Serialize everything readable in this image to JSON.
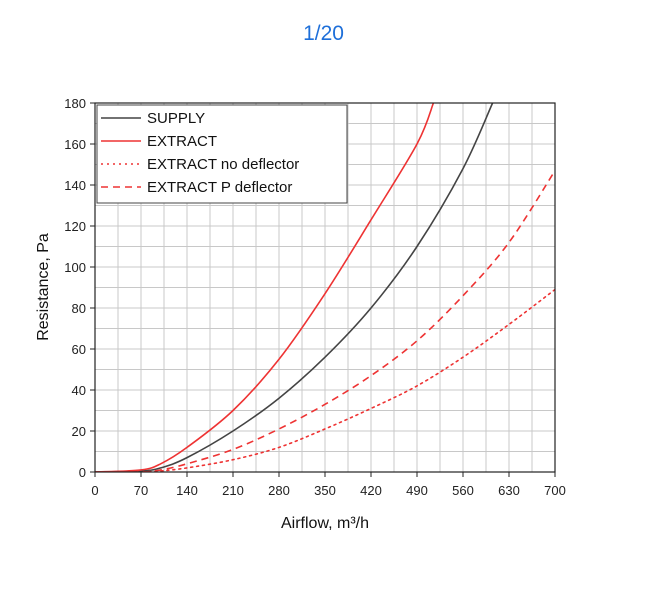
{
  "page_counter": "1/20",
  "chart_data": {
    "type": "line",
    "xlabel": "Airflow, m³/h",
    "ylabel": "Resistance, Pa",
    "xlim": [
      0,
      700
    ],
    "ylim": [
      0,
      180
    ],
    "x_ticks": [
      0,
      70,
      140,
      210,
      280,
      350,
      420,
      490,
      560,
      630,
      700
    ],
    "y_ticks": [
      0,
      20,
      40,
      60,
      80,
      100,
      120,
      140,
      160,
      180
    ],
    "grid": true,
    "legend_position": "top-left",
    "series": [
      {
        "name": "SUPPLY",
        "color": "#444444",
        "dash": "solid",
        "x": [
          0,
          70,
          100,
          140,
          210,
          280,
          350,
          420,
          490,
          560,
          605
        ],
        "y": [
          0,
          0.5,
          2,
          7,
          20,
          36,
          56,
          80,
          110,
          148,
          180
        ]
      },
      {
        "name": "EXTRACT",
        "color": "#ee3333",
        "dash": "solid",
        "x": [
          0,
          70,
          100,
          140,
          210,
          280,
          350,
          420,
          490,
          515
        ],
        "y": [
          0,
          1,
          4,
          12,
          30,
          55,
          87,
          123,
          160,
          180
        ]
      },
      {
        "name": "EXTRACT no deflector",
        "color": "#ee3333",
        "dash": "dotted",
        "x": [
          0,
          70,
          100,
          140,
          210,
          280,
          350,
          420,
          490,
          560,
          630,
          700
        ],
        "y": [
          0,
          0,
          0.5,
          2,
          6,
          12,
          21,
          31,
          42,
          56,
          72,
          89
        ]
      },
      {
        "name": "EXTRACT P deflector",
        "color": "#ee3333",
        "dash": "dashed",
        "x": [
          0,
          70,
          100,
          140,
          210,
          280,
          350,
          420,
          490,
          560,
          630,
          700
        ],
        "y": [
          0,
          0,
          1,
          4,
          11,
          21,
          33,
          47,
          64,
          86,
          112,
          147
        ]
      }
    ]
  }
}
